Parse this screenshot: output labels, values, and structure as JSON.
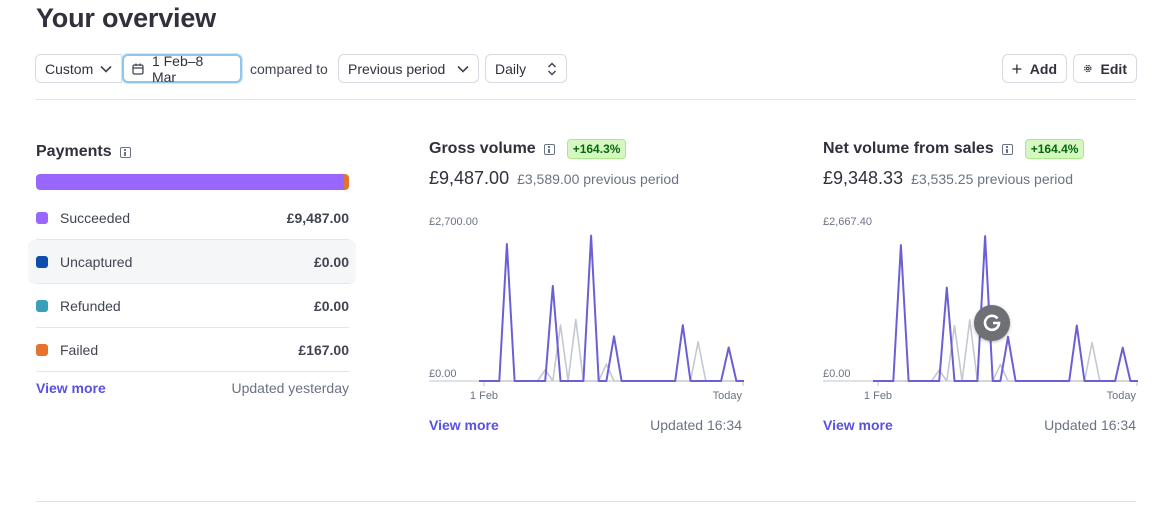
{
  "page": {
    "title": "Your overview"
  },
  "filters": {
    "range": "Custom",
    "dates": "1 Feb–8 Mar",
    "compared_to_label": "compared to",
    "compare": "Previous period",
    "interval": "Daily"
  },
  "actions": {
    "add": "Add",
    "edit": "Edit"
  },
  "payments": {
    "title": "Payments",
    "bar": [
      {
        "name": "Succeeded",
        "value": 9487.0,
        "color": "#9966ff"
      },
      {
        "name": "Failed",
        "value": 167.0,
        "color": "#e5722d"
      }
    ],
    "rows": [
      {
        "label": "Succeeded",
        "amount": "£9,487.00",
        "color": "#9966ff"
      },
      {
        "label": "Uncaptured",
        "amount": "£0.00",
        "color": "#0e4dab"
      },
      {
        "label": "Refunded",
        "amount": "£0.00",
        "color": "#3a9fb9"
      },
      {
        "label": "Failed",
        "amount": "£167.00",
        "color": "#e5722d"
      }
    ],
    "view_more": "View more",
    "updated": "Updated yesterday"
  },
  "gross": {
    "title": "Gross volume",
    "change": "+164.3%",
    "value": "£9,487.00",
    "previous": "£3,589.00 previous period",
    "view_more": "View more",
    "updated": "Updated 16:34"
  },
  "net": {
    "title": "Net volume from sales",
    "change": "+164.4%",
    "value": "£9,348.33",
    "previous": "£3,535.25 previous period",
    "view_more": "View more",
    "updated": "Updated 16:34"
  },
  "chart_data": [
    {
      "type": "line",
      "title": "Gross volume",
      "y_max_label": "£2,700.00",
      "y_min_label": "£0.00",
      "x_start_label": "1 Feb",
      "x_end_label": "Today",
      "ylim": [
        0,
        2700
      ],
      "grid": false,
      "series": [
        {
          "values": [
            0,
            0,
            0,
            2450,
            0,
            0,
            0,
            0,
            0,
            1700,
            0,
            0,
            0,
            0,
            2600,
            0,
            0,
            800,
            0,
            0,
            0,
            0,
            0,
            0,
            0,
            0,
            1000,
            0,
            0,
            0,
            0,
            0,
            600,
            0,
            0
          ],
          "color": "#6b5fd6"
        },
        {
          "values": [
            0,
            0,
            0,
            0,
            0,
            0,
            0,
            0,
            200,
            0,
            1000,
            0,
            1100,
            0,
            0,
            0,
            300,
            0,
            0,
            0,
            0,
            0,
            0,
            0,
            0,
            0,
            0,
            0,
            700,
            0,
            0,
            0,
            0,
            0,
            0
          ],
          "color": "#c4c8cf"
        }
      ]
    },
    {
      "type": "line",
      "title": "Net volume from sales",
      "y_max_label": "£2,667.40",
      "y_min_label": "£0.00",
      "x_start_label": "1 Feb",
      "x_end_label": "Today",
      "ylim": [
        0,
        2667.4
      ],
      "grid": false,
      "series": [
        {
          "values": [
            0,
            0,
            0,
            2400,
            0,
            0,
            0,
            0,
            0,
            1650,
            0,
            0,
            0,
            0,
            2560,
            0,
            0,
            780,
            0,
            0,
            0,
            0,
            0,
            0,
            0,
            0,
            980,
            0,
            0,
            0,
            0,
            0,
            590,
            0,
            0
          ],
          "color": "#6b5fd6"
        },
        {
          "values": [
            0,
            0,
            0,
            0,
            0,
            0,
            0,
            0,
            190,
            0,
            980,
            0,
            1080,
            0,
            0,
            0,
            290,
            0,
            0,
            0,
            0,
            0,
            0,
            0,
            0,
            0,
            0,
            0,
            680,
            0,
            0,
            0,
            0,
            0,
            0
          ],
          "color": "#c4c8cf"
        }
      ]
    }
  ]
}
